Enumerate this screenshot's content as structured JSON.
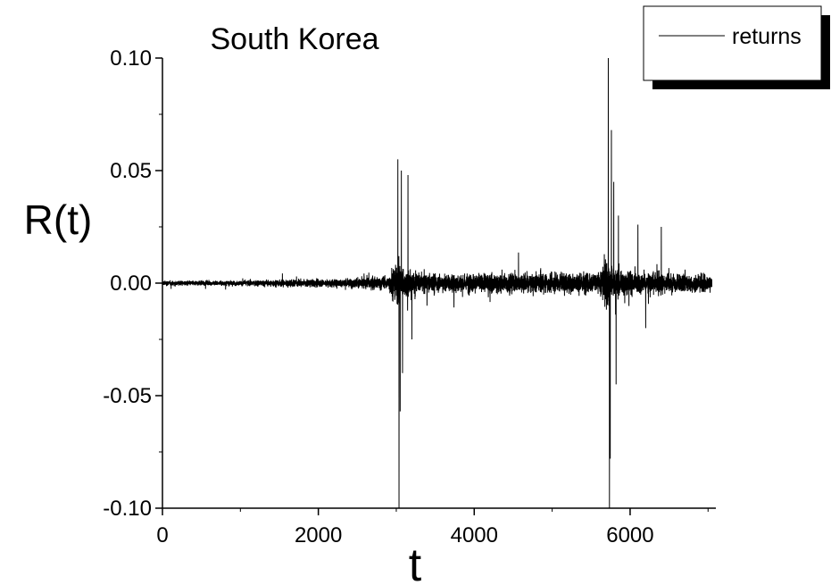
{
  "chart_data": {
    "type": "line",
    "title": "South Korea",
    "xlabel": "t",
    "ylabel": "R(t)",
    "xlim": [
      0,
      7100
    ],
    "ylim": [
      -0.1,
      0.1
    ],
    "x_ticks": [
      0,
      2000,
      4000,
      6000
    ],
    "x_tick_labels": [
      "0",
      "2000",
      "4000",
      "6000"
    ],
    "y_ticks": [
      -0.1,
      -0.05,
      0.0,
      0.05,
      0.1
    ],
    "y_tick_labels": [
      "-0.10",
      "-0.05",
      "0.00",
      "0.05",
      "0.10"
    ],
    "grid": false,
    "legend": {
      "position": "top-right",
      "entries": [
        "returns"
      ]
    },
    "colors": {
      "line": "#000000",
      "background": "#ffffff"
    },
    "series": [
      {
        "name": "returns",
        "n_points": 7050,
        "envelope_t": [
          0,
          500,
          1000,
          1500,
          2000,
          2500,
          2900,
          3000,
          3100,
          3300,
          3600,
          4000,
          4400,
          4800,
          5200,
          5600,
          5700,
          5800,
          6000,
          6400,
          6800,
          7050
        ],
        "envelope_amp": [
          0.002,
          0.002,
          0.002,
          0.003,
          0.003,
          0.004,
          0.006,
          0.02,
          0.012,
          0.007,
          0.007,
          0.008,
          0.008,
          0.008,
          0.008,
          0.009,
          0.022,
          0.012,
          0.009,
          0.008,
          0.007,
          0.007
        ],
        "spikes": [
          {
            "t": 3020,
            "r": 0.055
          },
          {
            "t": 3035,
            "r": -0.1
          },
          {
            "t": 3050,
            "r": -0.057
          },
          {
            "t": 3065,
            "r": 0.05
          },
          {
            "t": 3080,
            "r": -0.04
          },
          {
            "t": 3150,
            "r": 0.048
          },
          {
            "t": 3200,
            "r": -0.025
          },
          {
            "t": 5720,
            "r": 0.1
          },
          {
            "t": 5735,
            "r": -0.1
          },
          {
            "t": 5745,
            "r": -0.078
          },
          {
            "t": 5760,
            "r": 0.068
          },
          {
            "t": 5790,
            "r": 0.045
          },
          {
            "t": 5820,
            "r": -0.045
          },
          {
            "t": 5850,
            "r": 0.03
          },
          {
            "t": 6100,
            "r": 0.026
          },
          {
            "t": 6200,
            "r": -0.02
          },
          {
            "t": 6400,
            "r": 0.025
          }
        ]
      }
    ]
  }
}
